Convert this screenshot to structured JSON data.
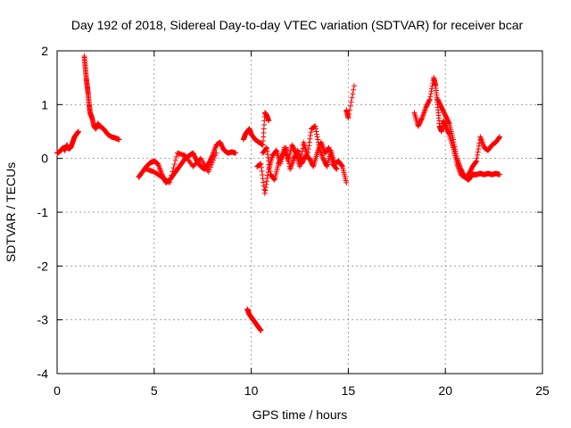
{
  "chart_data": {
    "type": "scatter",
    "title": "Day 192 of 2018, Sidereal Day-to-day VTEC variation (SDTVAR) for receiver bcar",
    "xlabel": "GPS time / hours",
    "ylabel": "SDTVAR / TECUs",
    "xlim": [
      0,
      25
    ],
    "ylim": [
      -4,
      2
    ],
    "xticks": [
      0,
      5,
      10,
      15,
      20,
      25
    ],
    "yticks": [
      -4,
      -3,
      -2,
      -1,
      0,
      1,
      2
    ],
    "grid": true,
    "marker": "+",
    "color": "#ff0000",
    "series": [
      {
        "name": "SDTVAR",
        "segments": [
          {
            "x": [
              0.0,
              0.1,
              0.2,
              0.3,
              0.4,
              0.5,
              0.6,
              0.7,
              0.8,
              0.9,
              1.0,
              1.1
            ],
            "y": [
              0.1,
              0.12,
              0.15,
              0.2,
              0.15,
              0.25,
              0.18,
              0.2,
              0.3,
              0.4,
              0.45,
              0.5
            ]
          },
          {
            "x": [
              1.4,
              1.45,
              1.5,
              1.55,
              1.6,
              1.65,
              1.7,
              1.8,
              1.9,
              2.0,
              2.1,
              2.2,
              2.4,
              2.6,
              2.8,
              3.0,
              3.2
            ],
            "y": [
              1.9,
              1.7,
              1.5,
              1.35,
              1.2,
              1.0,
              0.85,
              0.75,
              0.6,
              0.55,
              0.65,
              0.6,
              0.55,
              0.45,
              0.4,
              0.38,
              0.35
            ]
          },
          {
            "x": [
              4.2,
              4.4,
              4.6,
              4.8,
              5.0,
              5.2,
              5.4,
              5.6,
              5.8,
              6.0,
              6.2,
              6.4,
              6.6,
              6.8,
              7.0,
              7.2,
              7.4,
              7.6,
              7.8,
              8.0,
              8.2,
              8.4,
              8.6,
              8.8,
              9.0,
              9.2
            ],
            "y": [
              -0.35,
              -0.25,
              -0.15,
              -0.08,
              -0.05,
              -0.1,
              -0.3,
              -0.45,
              -0.4,
              -0.3,
              -0.2,
              -0.1,
              0.0,
              0.05,
              0.1,
              -0.05,
              -0.15,
              -0.2,
              -0.1,
              0.05,
              0.25,
              0.3,
              0.15,
              0.1,
              0.12,
              0.1
            ]
          },
          {
            "x": [
              4.6,
              5.0,
              5.4,
              5.8,
              6.2,
              6.6,
              7.0,
              7.4,
              7.8,
              8.2
            ],
            "y": [
              -0.2,
              -0.25,
              -0.35,
              -0.45,
              0.1,
              0.05,
              -0.15,
              0.0,
              -0.25,
              0.1
            ]
          },
          {
            "x": [
              9.6,
              9.7,
              9.8,
              9.9,
              10.0,
              10.2,
              10.4,
              10.6,
              10.7,
              10.8,
              10.9
            ],
            "y": [
              0.35,
              0.45,
              0.5,
              0.55,
              0.45,
              0.35,
              0.3,
              0.25,
              0.85,
              0.8,
              0.7
            ]
          },
          {
            "x": [
              9.8,
              9.9,
              10.0,
              10.1,
              10.2,
              10.3,
              10.4,
              10.5
            ],
            "y": [
              -2.8,
              -2.9,
              -2.95,
              -3.0,
              -3.05,
              -3.1,
              -3.15,
              -3.2
            ]
          },
          {
            "x": [
              10.3,
              10.5,
              10.7,
              10.9,
              11.1,
              11.3,
              11.5,
              11.7,
              11.9,
              12.1,
              12.3,
              12.5,
              12.7,
              12.9,
              13.1,
              13.3,
              13.5,
              13.7,
              13.9,
              14.1,
              14.3,
              14.5,
              14.7,
              14.9
            ],
            "y": [
              -0.15,
              -0.1,
              -0.65,
              -0.2,
              0.05,
              0.15,
              -0.1,
              0.2,
              -0.05,
              0.25,
              0.1,
              -0.15,
              0.3,
              0.05,
              0.55,
              0.6,
              0.2,
              0.0,
              -0.15,
              0.15,
              -0.1,
              -0.05,
              -0.15,
              -0.45
            ]
          },
          {
            "x": [
              10.6,
              10.8,
              11.0,
              11.2,
              11.4,
              11.6,
              11.8,
              12.0,
              12.2,
              12.4,
              12.6,
              12.8,
              13.0,
              13.2,
              13.4,
              13.6,
              13.8,
              14.0,
              14.2,
              14.4
            ],
            "y": [
              0.1,
              0.2,
              -0.3,
              -0.4,
              -0.1,
              0.05,
              0.2,
              -0.2,
              0.0,
              0.15,
              -0.1,
              0.05,
              0.0,
              -0.15,
              0.1,
              0.3,
              0.1,
              0.2,
              -0.1,
              -0.2
            ]
          },
          {
            "x": [
              14.9,
              15.0,
              15.3
            ],
            "y": [
              0.9,
              0.75,
              1.35
            ]
          },
          {
            "x": [
              18.4,
              18.6,
              18.8,
              19.0,
              19.2,
              19.4,
              19.5,
              19.6,
              19.7,
              19.8,
              19.9,
              20.0,
              20.2,
              20.4,
              20.6,
              20.8,
              21.0,
              21.2,
              21.4,
              21.6,
              21.8,
              22.0,
              22.2,
              22.4,
              22.6,
              22.8
            ],
            "y": [
              0.85,
              0.6,
              0.75,
              0.95,
              1.1,
              1.5,
              1.35,
              1.0,
              0.6,
              0.5,
              0.7,
              0.6,
              0.45,
              0.2,
              -0.1,
              -0.3,
              -0.35,
              -0.4,
              -0.3,
              -0.3,
              -0.28,
              -0.3,
              -0.28,
              -0.3,
              -0.28,
              -0.3
            ]
          },
          {
            "x": [
              19.6,
              19.8,
              20.0,
              20.2,
              20.4,
              20.6,
              20.8,
              21.0,
              21.2,
              21.4,
              21.6,
              21.8,
              22.0,
              22.2,
              22.4,
              22.6,
              22.8
            ],
            "y": [
              1.1,
              0.95,
              0.8,
              0.65,
              0.35,
              0.0,
              -0.2,
              -0.35,
              -0.3,
              -0.15,
              -0.05,
              0.4,
              0.2,
              0.15,
              0.25,
              0.3,
              0.4
            ]
          }
        ]
      }
    ]
  }
}
